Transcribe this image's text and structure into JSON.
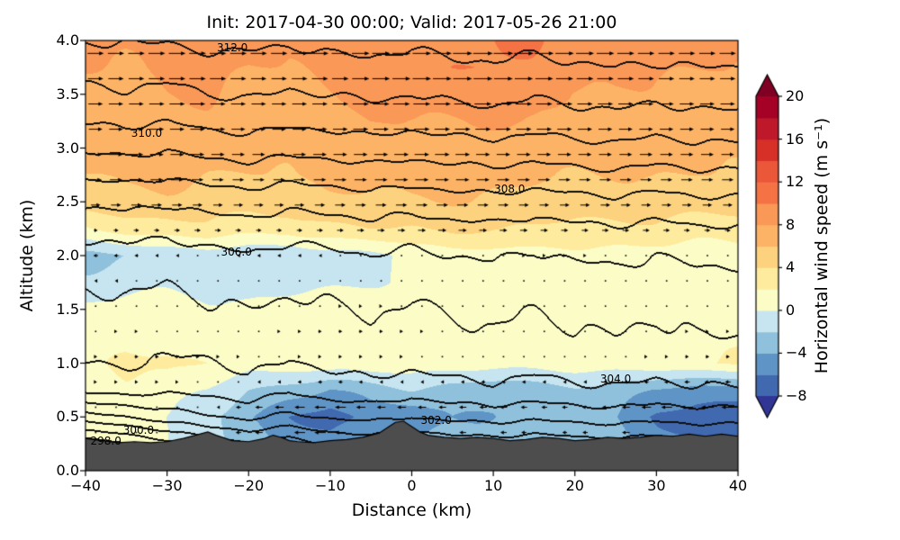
{
  "chart_data": {
    "type": "heatmap",
    "subtype": "filled_contour_cross_section_with_theta_contours_and_quiver",
    "title": "Init: 2017-04-30 00:00; Valid: 2017-05-26 21:00",
    "xlabel": "Distance (km)",
    "ylabel": "Altitude (km)",
    "xlim": [
      -40,
      40
    ],
    "ylim": [
      0,
      4
    ],
    "xticks": [
      {
        "v": -40,
        "label": "−40"
      },
      {
        "v": -30,
        "label": "−30"
      },
      {
        "v": -20,
        "label": "−20"
      },
      {
        "v": -10,
        "label": "−10"
      },
      {
        "v": 0,
        "label": "0"
      },
      {
        "v": 10,
        "label": "10"
      },
      {
        "v": 20,
        "label": "20"
      },
      {
        "v": 30,
        "label": "30"
      },
      {
        "v": 40,
        "label": "40"
      }
    ],
    "yticks": [
      {
        "v": 0,
        "label": "0.0"
      },
      {
        "v": 0.5,
        "label": "0.5"
      },
      {
        "v": 1,
        "label": "1.0"
      },
      {
        "v": 1.5,
        "label": "1.5"
      },
      {
        "v": 2,
        "label": "2.0"
      },
      {
        "v": 2.5,
        "label": "2.5"
      },
      {
        "v": 3,
        "label": "3.0"
      },
      {
        "v": 3.5,
        "label": "3.5"
      },
      {
        "v": 4,
        "label": "4.0"
      }
    ],
    "colorbar": {
      "label": "Horizontal wind speed (m s⁻¹)",
      "ticks": [
        {
          "v": 20,
          "label": "20"
        },
        {
          "v": 16,
          "label": "16"
        },
        {
          "v": 12,
          "label": "12"
        },
        {
          "v": 8,
          "label": "8"
        },
        {
          "v": 4,
          "label": "4"
        },
        {
          "v": 0,
          "label": "0"
        },
        {
          "v": -4,
          "label": "−4"
        },
        {
          "v": -8,
          "label": "−8"
        }
      ],
      "levels": [
        -8,
        -6,
        -4,
        -2,
        0,
        2,
        4,
        6,
        8,
        10,
        12,
        14,
        16,
        18,
        20
      ],
      "band_colors": [
        "#4169af",
        "#5f94c6",
        "#8fc1dc",
        "#c7e5f0",
        "#fbfcc6",
        "#feeb9d",
        "#fdd27f",
        "#fdb365",
        "#fa9857",
        "#f57245",
        "#ea5739",
        "#d73027",
        "#be182a",
        "#a50026"
      ],
      "under_color": "#313695",
      "over_color": "#7f0022"
    },
    "grid": {
      "x": [
        -40,
        -35,
        -30,
        -25,
        -20,
        -15,
        -10,
        -5,
        0,
        5,
        10,
        15,
        20,
        25,
        30,
        35,
        40
      ],
      "z": [
        4.0,
        3.75,
        3.5,
        3.25,
        3.0,
        2.75,
        2.5,
        2.25,
        2.0,
        1.75,
        1.5,
        1.25,
        1.0,
        0.75,
        0.5,
        0.25,
        0.0
      ],
      "wind_speed": [
        [
          8.5,
          8.5,
          8.5,
          8.5,
          8.5,
          8.5,
          9.0,
          9.0,
          9.0,
          9.5,
          10.0,
          10.0,
          9.5,
          9.0,
          8.5,
          8.5,
          8.5
        ],
        [
          8.0,
          8.0,
          8.5,
          8.5,
          8.0,
          8.0,
          8.5,
          9.0,
          9.5,
          10.0,
          10.0,
          9.5,
          9.0,
          8.5,
          8.0,
          8.0,
          8.0
        ],
        [
          7.5,
          7.5,
          8.0,
          8.0,
          7.5,
          7.5,
          8.0,
          8.5,
          9.0,
          9.0,
          9.0,
          8.5,
          8.0,
          8.0,
          7.5,
          7.5,
          7.5
        ],
        [
          7.0,
          7.0,
          7.5,
          7.5,
          7.0,
          7.0,
          7.5,
          8.0,
          8.0,
          8.0,
          8.0,
          8.0,
          7.5,
          7.0,
          7.0,
          7.0,
          7.0
        ],
        [
          6.5,
          7.0,
          7.0,
          7.0,
          6.5,
          6.5,
          7.0,
          7.0,
          7.5,
          7.5,
          7.0,
          7.0,
          7.0,
          6.5,
          6.5,
          6.5,
          6.5
        ],
        [
          6.0,
          6.5,
          6.5,
          6.0,
          6.0,
          6.0,
          6.5,
          6.5,
          7.0,
          7.0,
          6.5,
          6.5,
          6.0,
          6.0,
          6.0,
          6.0,
          6.0
        ],
        [
          5.0,
          5.5,
          5.5,
          5.0,
          5.0,
          5.0,
          5.5,
          5.5,
          6.0,
          6.0,
          5.5,
          5.0,
          5.0,
          5.0,
          5.0,
          5.0,
          5.0
        ],
        [
          2.0,
          3.0,
          3.0,
          3.5,
          3.0,
          3.0,
          3.5,
          4.0,
          4.0,
          4.5,
          4.0,
          4.0,
          3.5,
          3.5,
          3.5,
          3.0,
          3.0
        ],
        [
          -2.5,
          -2.2,
          -1.5,
          -1.0,
          -1.5,
          -2.0,
          -1.0,
          -0.5,
          0.5,
          1.0,
          1.0,
          1.5,
          1.5,
          1.0,
          1.0,
          1.0,
          1.0
        ],
        [
          -1.5,
          -1.0,
          -0.5,
          -0.5,
          -1.0,
          -1.0,
          -0.5,
          0.0,
          0.5,
          1.0,
          1.0,
          1.0,
          1.0,
          1.0,
          1.0,
          1.0,
          1.0
        ],
        [
          0.5,
          1.0,
          1.0,
          0.5,
          0.5,
          1.0,
          1.5,
          1.5,
          1.0,
          1.0,
          1.0,
          1.0,
          1.0,
          1.0,
          1.0,
          1.0,
          1.0
        ],
        [
          1.0,
          1.5,
          1.0,
          1.0,
          1.0,
          1.5,
          2.0,
          2.0,
          1.5,
          1.0,
          1.0,
          1.0,
          1.0,
          1.0,
          1.0,
          1.5,
          1.5
        ],
        [
          1.5,
          2.0,
          2.5,
          2.0,
          1.0,
          1.0,
          1.5,
          1.5,
          1.0,
          1.0,
          1.0,
          1.0,
          1.0,
          1.0,
          1.5,
          2.0,
          2.0
        ],
        [
          1.0,
          1.5,
          1.0,
          0.0,
          -2.0,
          -3.0,
          -4.0,
          -3.0,
          -2.0,
          -3.0,
          -3.5,
          -3.0,
          -2.5,
          -3.0,
          -4.0,
          -5.0,
          -5.0
        ],
        [
          0.5,
          0.5,
          0.0,
          -1.0,
          -4.0,
          -6.0,
          -7.0,
          -5.0,
          -6.0,
          -4.0,
          -4.0,
          -3.0,
          -3.0,
          -4.0,
          -6.0,
          -7.0,
          -7.5
        ],
        [
          0.5,
          0.5,
          0.0,
          -1.0,
          -3.0,
          -5.0,
          -5.0,
          -4.0,
          -4.0,
          -3.0,
          -3.0,
          -2.0,
          -2.0,
          -3.0,
          -5.0,
          -6.0,
          -6.0
        ],
        [
          0.0,
          0.0,
          0.0,
          -1.0,
          -2.0,
          -3.0,
          -3.0,
          -3.0,
          -3.0,
          -2.0,
          -2.0,
          -2.0,
          -2.0,
          -2.0,
          -3.0,
          -4.0,
          -4.0
        ]
      ],
      "theta": [
        [
          312.1,
          312.0,
          312.1,
          312.3,
          312.2,
          312.1,
          312.3,
          312.3,
          312.2,
          312.4,
          312.4,
          312.3,
          312.4,
          312.6,
          312.4,
          312.5,
          312.6
        ],
        [
          311.4,
          311.5,
          311.4,
          311.6,
          311.7,
          311.5,
          311.7,
          311.8,
          311.6,
          311.8,
          311.9,
          311.7,
          311.9,
          312.0,
          311.9,
          312.0,
          312.0
        ],
        [
          310.8,
          310.9,
          310.7,
          311.0,
          311.1,
          310.9,
          311.0,
          311.2,
          311.0,
          311.2,
          311.3,
          311.1,
          311.3,
          311.4,
          311.2,
          311.4,
          311.4
        ],
        [
          310.1,
          310.2,
          310.0,
          310.3,
          310.4,
          310.2,
          310.3,
          310.5,
          310.3,
          310.5,
          310.6,
          310.4,
          310.6,
          310.7,
          310.5,
          310.7,
          310.7
        ],
        [
          309.2,
          309.3,
          309.1,
          309.4,
          309.5,
          309.3,
          309.4,
          309.6,
          309.4,
          309.6,
          309.7,
          309.5,
          309.7,
          309.8,
          309.6,
          309.8,
          309.8
        ],
        [
          308.2,
          308.3,
          308.1,
          308.4,
          308.5,
          308.3,
          308.4,
          308.6,
          308.4,
          308.6,
          308.7,
          308.5,
          308.7,
          308.8,
          308.6,
          308.8,
          308.8
        ],
        [
          307.2,
          307.3,
          307.1,
          307.4,
          307.5,
          307.3,
          307.4,
          307.6,
          307.4,
          307.6,
          307.7,
          307.5,
          307.7,
          307.8,
          307.6,
          307.8,
          307.8
        ],
        [
          306.3,
          306.4,
          306.2,
          306.5,
          306.6,
          306.4,
          306.5,
          306.7,
          306.5,
          306.7,
          306.8,
          306.6,
          306.8,
          306.9,
          306.7,
          306.9,
          306.9
        ],
        [
          305.6,
          305.7,
          305.5,
          305.8,
          305.9,
          305.7,
          305.8,
          306.0,
          305.8,
          306.0,
          306.1,
          305.9,
          306.1,
          306.2,
          306.0,
          306.2,
          306.2
        ],
        [
          305.1,
          305.2,
          305.0,
          305.3,
          305.4,
          305.2,
          305.3,
          305.5,
          305.3,
          305.5,
          305.6,
          305.4,
          305.6,
          305.7,
          305.5,
          305.7,
          305.7
        ],
        [
          304.7,
          304.8,
          304.6,
          304.9,
          305.0,
          304.8,
          304.9,
          305.1,
          304.9,
          305.1,
          305.2,
          305.0,
          305.2,
          305.3,
          305.1,
          305.3,
          305.3
        ],
        [
          304.4,
          304.5,
          304.3,
          304.6,
          304.7,
          304.5,
          304.6,
          304.8,
          304.6,
          304.8,
          304.9,
          304.7,
          304.9,
          305.0,
          304.8,
          305.0,
          305.0
        ],
        [
          304.0,
          304.1,
          303.9,
          303.8,
          304.3,
          303.9,
          304.2,
          304.4,
          304.2,
          304.4,
          304.5,
          304.3,
          304.5,
          304.6,
          304.4,
          304.6,
          304.6
        ],
        [
          303.3,
          303.4,
          303.2,
          303.3,
          303.6,
          303.1,
          303.5,
          303.7,
          303.4,
          303.7,
          303.8,
          303.6,
          303.8,
          303.9,
          303.7,
          303.9,
          303.9
        ],
        [
          300.6,
          301.0,
          301.5,
          301.9,
          302.2,
          301.8,
          302.1,
          302.3,
          302.0,
          302.3,
          302.4,
          302.2,
          302.4,
          302.5,
          302.3,
          302.5,
          302.5
        ],
        [
          297.4,
          297.9,
          298.6,
          299.4,
          299.9,
          299.5,
          300.1,
          300.4,
          300.0,
          300.4,
          300.5,
          300.3,
          300.5,
          300.6,
          300.4,
          300.6,
          300.6
        ],
        [
          295.8,
          296.3,
          297.0,
          297.6,
          298.0,
          297.7,
          298.1,
          298.3,
          298.0,
          298.3,
          298.4,
          298.2,
          298.4,
          298.5,
          298.3,
          298.5,
          298.5
        ]
      ]
    },
    "contours": {
      "interval": 1.0,
      "labeled_values": [
        298.0,
        300.0,
        302.0,
        304.0,
        306.0,
        308.0,
        310.0,
        312.0
      ],
      "labels": [
        {
          "text": "312.0",
          "x": -22,
          "z": 3.93
        },
        {
          "text": "310.0",
          "x": -32.5,
          "z": 3.14
        },
        {
          "text": "308.0",
          "x": 12,
          "z": 2.62
        },
        {
          "text": "306.0",
          "x": -21.5,
          "z": 2.03
        },
        {
          "text": "304.0",
          "x": 25,
          "z": 0.85
        },
        {
          "text": "302.0",
          "x": 3,
          "z": 0.47
        },
        {
          "text": "300.0",
          "x": -33.5,
          "z": 0.38
        },
        {
          "text": "298.0",
          "x": -37.5,
          "z": 0.28
        }
      ]
    },
    "terrain": {
      "color": "#4d4d4d",
      "x": [
        -40,
        -38,
        -36,
        -34,
        -32,
        -30,
        -28,
        -26,
        -25,
        -24,
        -22,
        -20,
        -18,
        -17,
        -16,
        -15,
        -14,
        -12,
        -10,
        -8,
        -6,
        -4,
        -3,
        -2,
        -1,
        0,
        1,
        2,
        4,
        6,
        8,
        10,
        12,
        14,
        16,
        18,
        20,
        22,
        24,
        26,
        28,
        30,
        32,
        34,
        36,
        38,
        40
      ],
      "height": [
        0.3,
        0.28,
        0.26,
        0.27,
        0.26,
        0.27,
        0.3,
        0.34,
        0.36,
        0.33,
        0.28,
        0.27,
        0.3,
        0.33,
        0.31,
        0.28,
        0.27,
        0.26,
        0.28,
        0.29,
        0.31,
        0.35,
        0.4,
        0.45,
        0.46,
        0.41,
        0.36,
        0.33,
        0.31,
        0.3,
        0.31,
        0.3,
        0.28,
        0.29,
        0.31,
        0.3,
        0.28,
        0.29,
        0.31,
        0.3,
        0.31,
        0.33,
        0.32,
        0.34,
        0.32,
        0.34,
        0.32
      ]
    },
    "quiver": {
      "x0off": 1.25,
      "dx": 2.5,
      "z0": 0.12,
      "dz": 0.235,
      "scale": 2.2
    },
    "noise": {
      "u_amp": 0.35,
      "theta_amp": 0.12
    }
  }
}
